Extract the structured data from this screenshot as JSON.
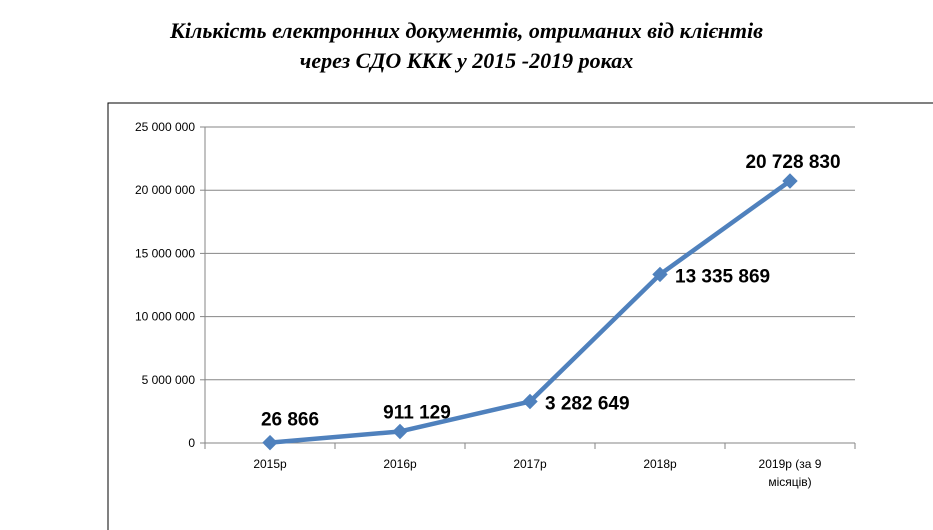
{
  "chart_data": {
    "type": "line",
    "title_lines": [
      "Кількість електронних документів, отриманих від клієнтів",
      "через СДО ККК у 2015 -2019 роках"
    ],
    "categories": [
      [
        "2015р"
      ],
      [
        "2016р"
      ],
      [
        "2017р"
      ],
      [
        "2018р"
      ],
      [
        "2019р (за 9",
        "місяців)"
      ]
    ],
    "series": [
      {
        "values": [
          26866,
          911129,
          3282649,
          13335869,
          20728830
        ],
        "data_labels": [
          "26 866",
          "911 129",
          "3 282 649",
          "13 335 869",
          "20 728 830"
        ],
        "color": "#4F81BD"
      }
    ],
    "y_ticks": [
      0,
      5000000,
      10000000,
      15000000,
      20000000,
      25000000
    ],
    "y_tick_labels": [
      "0",
      "5 000 000",
      "10 000 000",
      "15 000 000",
      "20 000 000",
      "25 000 000"
    ],
    "ylim": [
      0,
      25000000
    ],
    "grid": true,
    "legend": "none"
  }
}
